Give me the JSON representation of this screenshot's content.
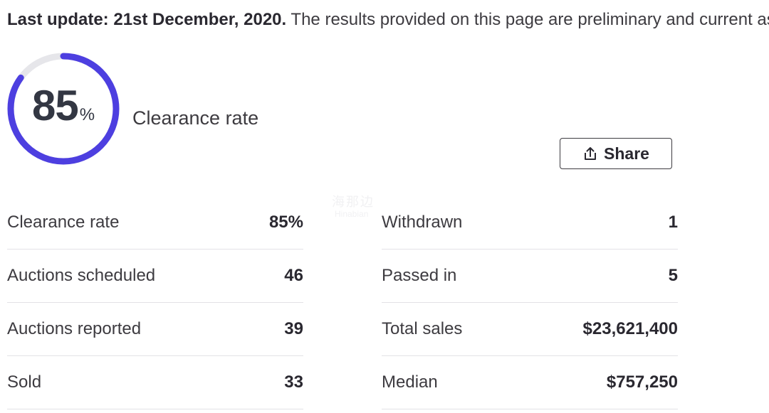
{
  "notice": {
    "bold": "Last update: 21st December, 2020.",
    "text": " The results provided on this page are preliminary and current as"
  },
  "gauge": {
    "value": "85",
    "unit": "%",
    "fraction": 0.85,
    "label": "Clearance rate",
    "color": "#4d3fe0",
    "track_color": "#e6e6ea"
  },
  "share": {
    "label": "Share",
    "icon": "share-icon"
  },
  "stats_left": [
    {
      "label": "Clearance rate",
      "value": "85%"
    },
    {
      "label": "Auctions scheduled",
      "value": "46"
    },
    {
      "label": "Auctions reported",
      "value": "39"
    },
    {
      "label": "Sold",
      "value": "33"
    }
  ],
  "stats_right": [
    {
      "label": "Withdrawn",
      "value": "1"
    },
    {
      "label": "Passed in",
      "value": "5"
    },
    {
      "label": "Total sales",
      "value": "$23,621,400"
    },
    {
      "label": "Median",
      "value": "$757,250"
    }
  ],
  "watermark": {
    "text": "海那边",
    "sub": "Hinabian"
  }
}
